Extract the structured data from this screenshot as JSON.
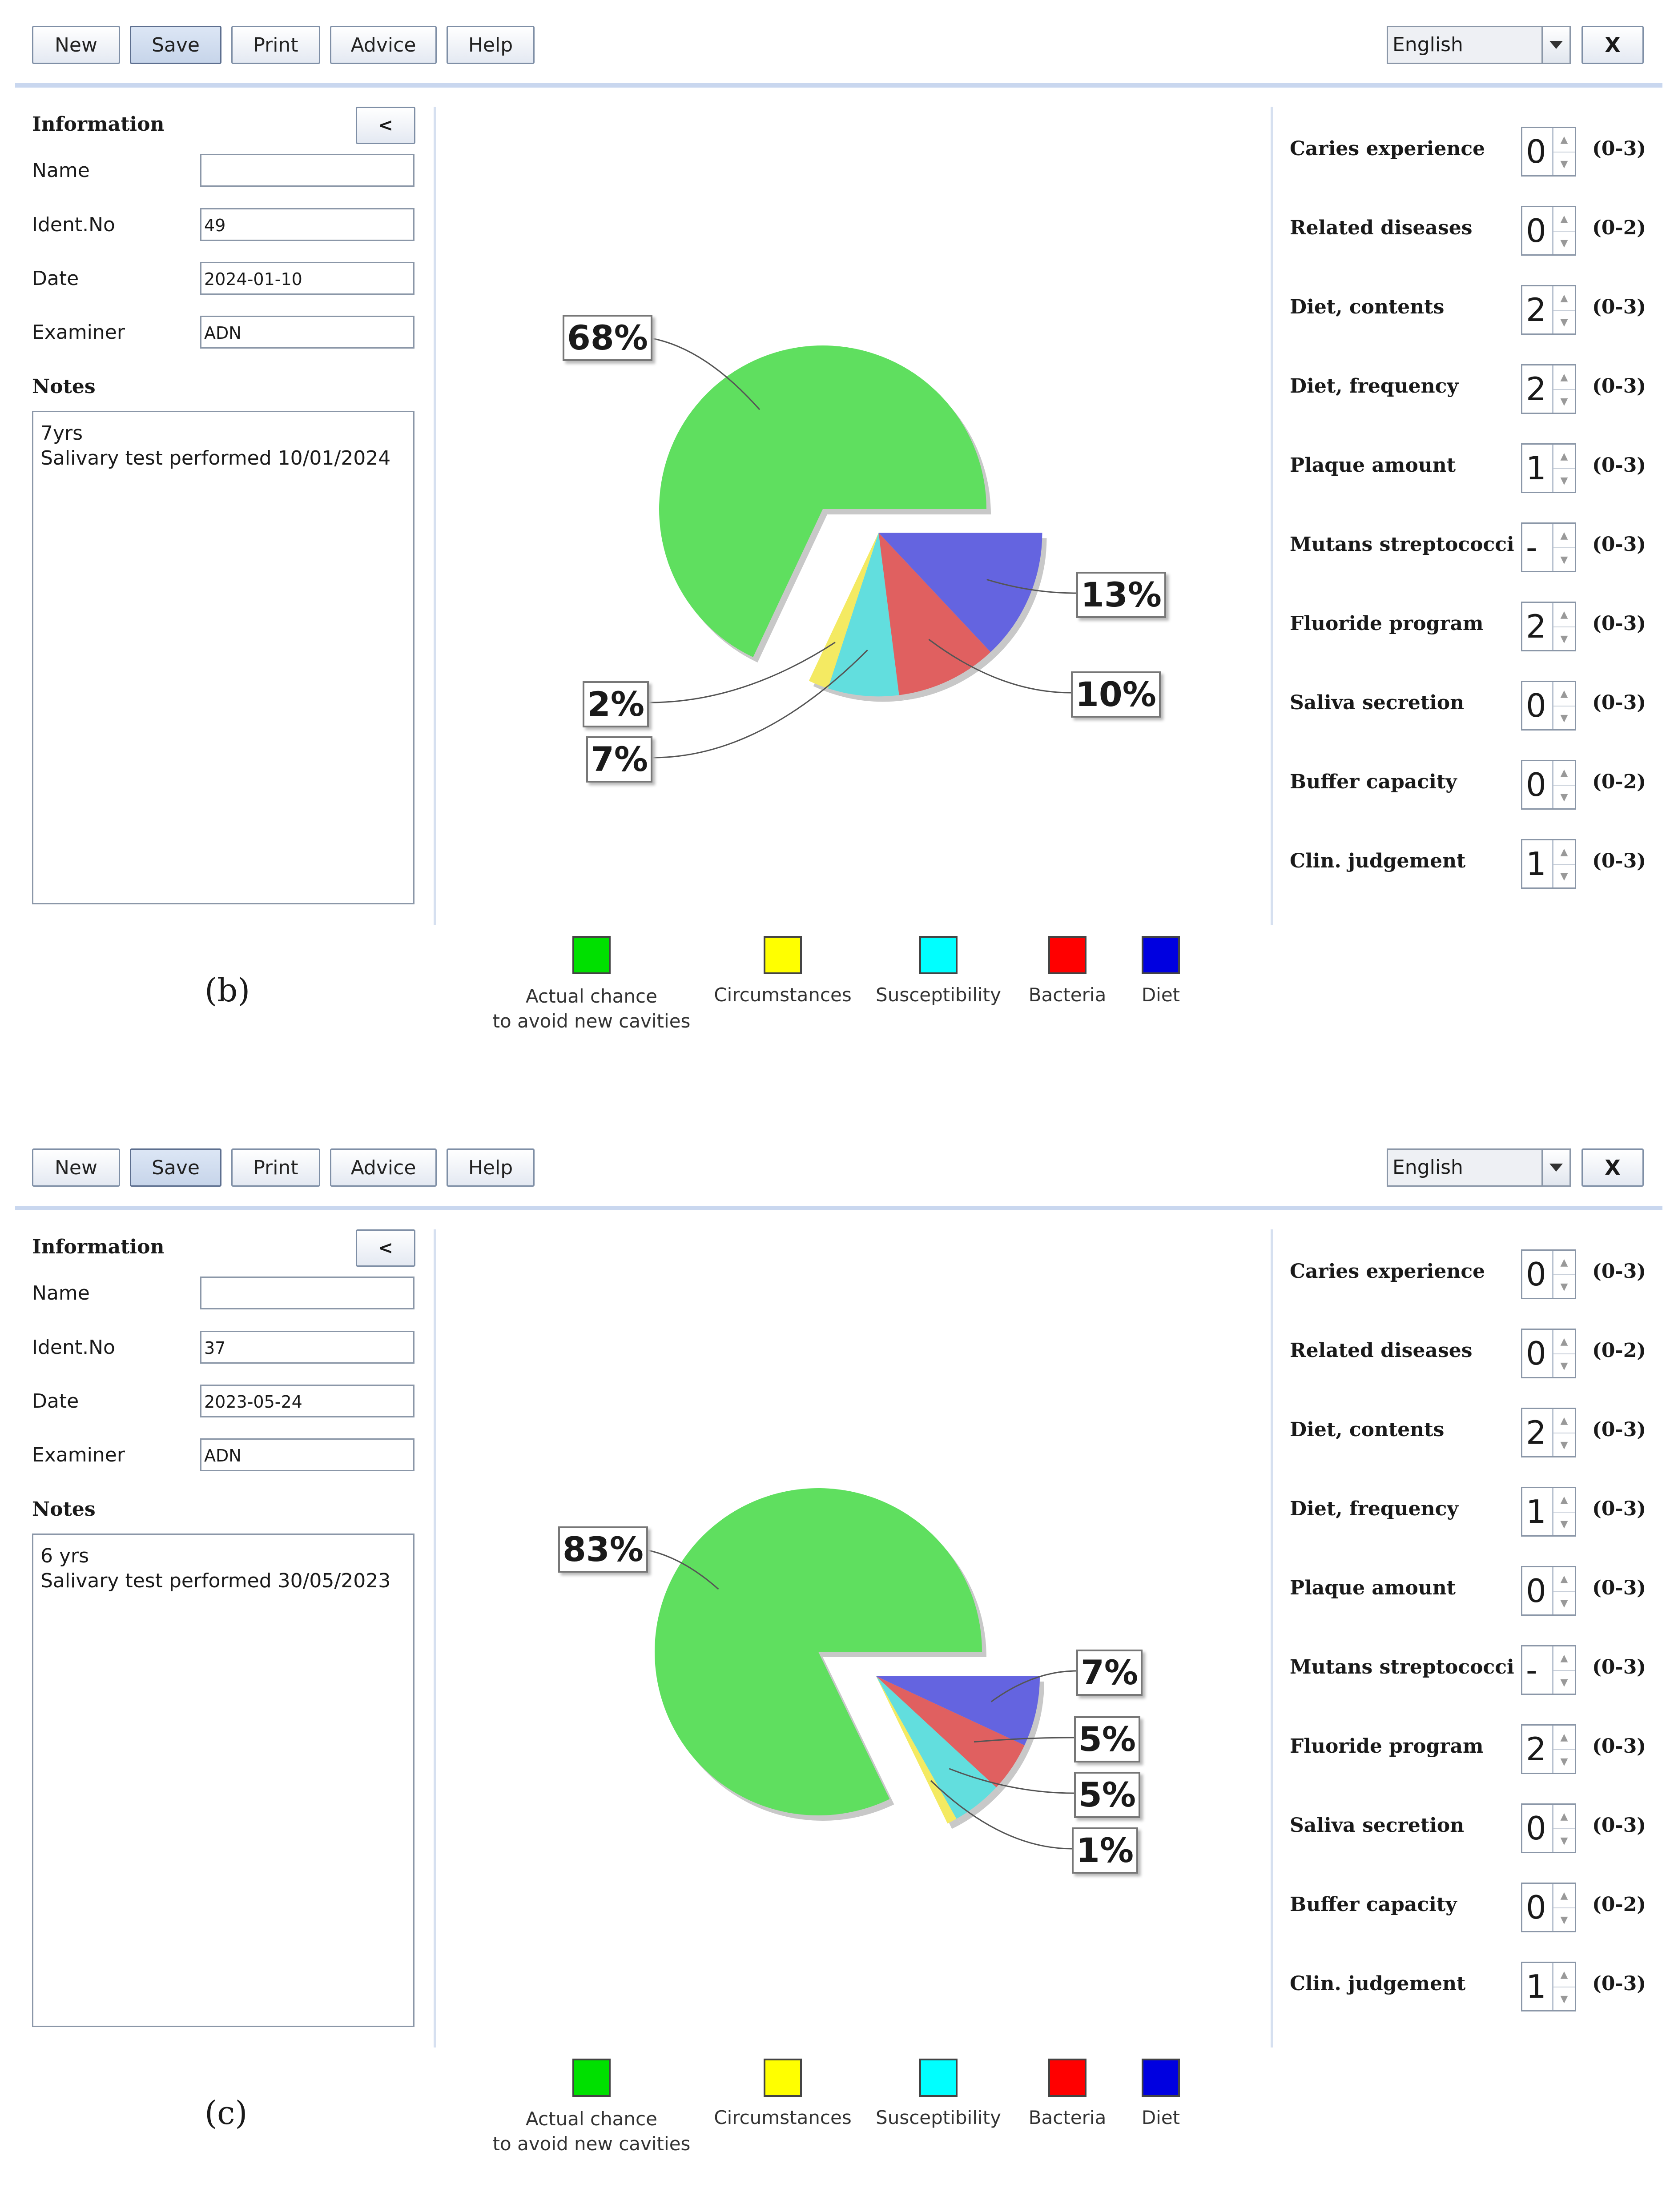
{
  "toolbar": {
    "new": "New",
    "save": "Save",
    "print": "Print",
    "advice": "Advice",
    "help": "Help",
    "language": "English",
    "close": "X"
  },
  "info": {
    "title": "Information",
    "collapse": "<",
    "name_label": "Name",
    "ident_label": "Ident.No",
    "date_label": "Date",
    "examiner_label": "Examiner",
    "notes_label": "Notes"
  },
  "legend": {
    "actual": "Actual chance\nto avoid new cavities",
    "circumstances": "Circumstances",
    "susceptibility": "Susceptibility",
    "bacteria": "Bacteria",
    "diet": "Diet"
  },
  "colors": {
    "green": "#5fdf5f",
    "yellow": "#f4ea62",
    "cyan": "#62dede",
    "red": "#e06060",
    "blue": "#6464e0"
  },
  "panels": [
    {
      "caption": "(b)",
      "name": "",
      "ident": "49",
      "date": "2024-01-10",
      "examiner": "ADN",
      "notes": "7yrs\nSalivary test performed 10/01/2024",
      "params": [
        {
          "label": "Caries experience",
          "value": "0",
          "range": "(0-3)"
        },
        {
          "label": "Related diseases",
          "value": "0",
          "range": "(0-2)"
        },
        {
          "label": "Diet, contents",
          "value": "2",
          "range": "(0-3)"
        },
        {
          "label": "Diet, frequency",
          "value": "2",
          "range": "(0-3)"
        },
        {
          "label": "Plaque amount",
          "value": "1",
          "range": "(0-3)"
        },
        {
          "label": "Mutans streptococci",
          "value": "-",
          "range": "(0-3)"
        },
        {
          "label": "Fluoride program",
          "value": "2",
          "range": "(0-3)"
        },
        {
          "label": "Saliva secretion",
          "value": "0",
          "range": "(0-3)"
        },
        {
          "label": "Buffer capacity",
          "value": "0",
          "range": "(0-2)"
        },
        {
          "label": "Clin. judgement",
          "value": "1",
          "range": "(0-3)"
        }
      ]
    },
    {
      "caption": "(c)",
      "name": "",
      "ident": "37",
      "date": "2023-05-24",
      "examiner": "ADN",
      "notes": "6 yrs\nSalivary test performed 30/05/2023",
      "params": [
        {
          "label": "Caries experience",
          "value": "0",
          "range": "(0-3)"
        },
        {
          "label": "Related diseases",
          "value": "0",
          "range": "(0-2)"
        },
        {
          "label": "Diet, contents",
          "value": "2",
          "range": "(0-3)"
        },
        {
          "label": "Diet, frequency",
          "value": "1",
          "range": "(0-3)"
        },
        {
          "label": "Plaque amount",
          "value": "0",
          "range": "(0-3)"
        },
        {
          "label": "Mutans streptococci",
          "value": "-",
          "range": "(0-3)"
        },
        {
          "label": "Fluoride program",
          "value": "2",
          "range": "(0-3)"
        },
        {
          "label": "Saliva secretion",
          "value": "0",
          "range": "(0-3)"
        },
        {
          "label": "Buffer capacity",
          "value": "0",
          "range": "(0-2)"
        },
        {
          "label": "Clin. judgement",
          "value": "1",
          "range": "(0-3)"
        }
      ]
    }
  ],
  "chart_data": [
    {
      "type": "pie",
      "categories": [
        "Actual chance to avoid new cavities",
        "Circumstances",
        "Susceptibility",
        "Bacteria",
        "Diet"
      ],
      "values": [
        68,
        2,
        7,
        10,
        13
      ],
      "labels": [
        "68%",
        "2%",
        "7%",
        "10%",
        "13%"
      ]
    },
    {
      "type": "pie",
      "categories": [
        "Actual chance to avoid new cavities",
        "Circumstances",
        "Susceptibility",
        "Bacteria",
        "Diet"
      ],
      "values": [
        83,
        1,
        5,
        5,
        7
      ],
      "labels": [
        "83%",
        "1%",
        "5%",
        "5%",
        "7%"
      ]
    }
  ]
}
